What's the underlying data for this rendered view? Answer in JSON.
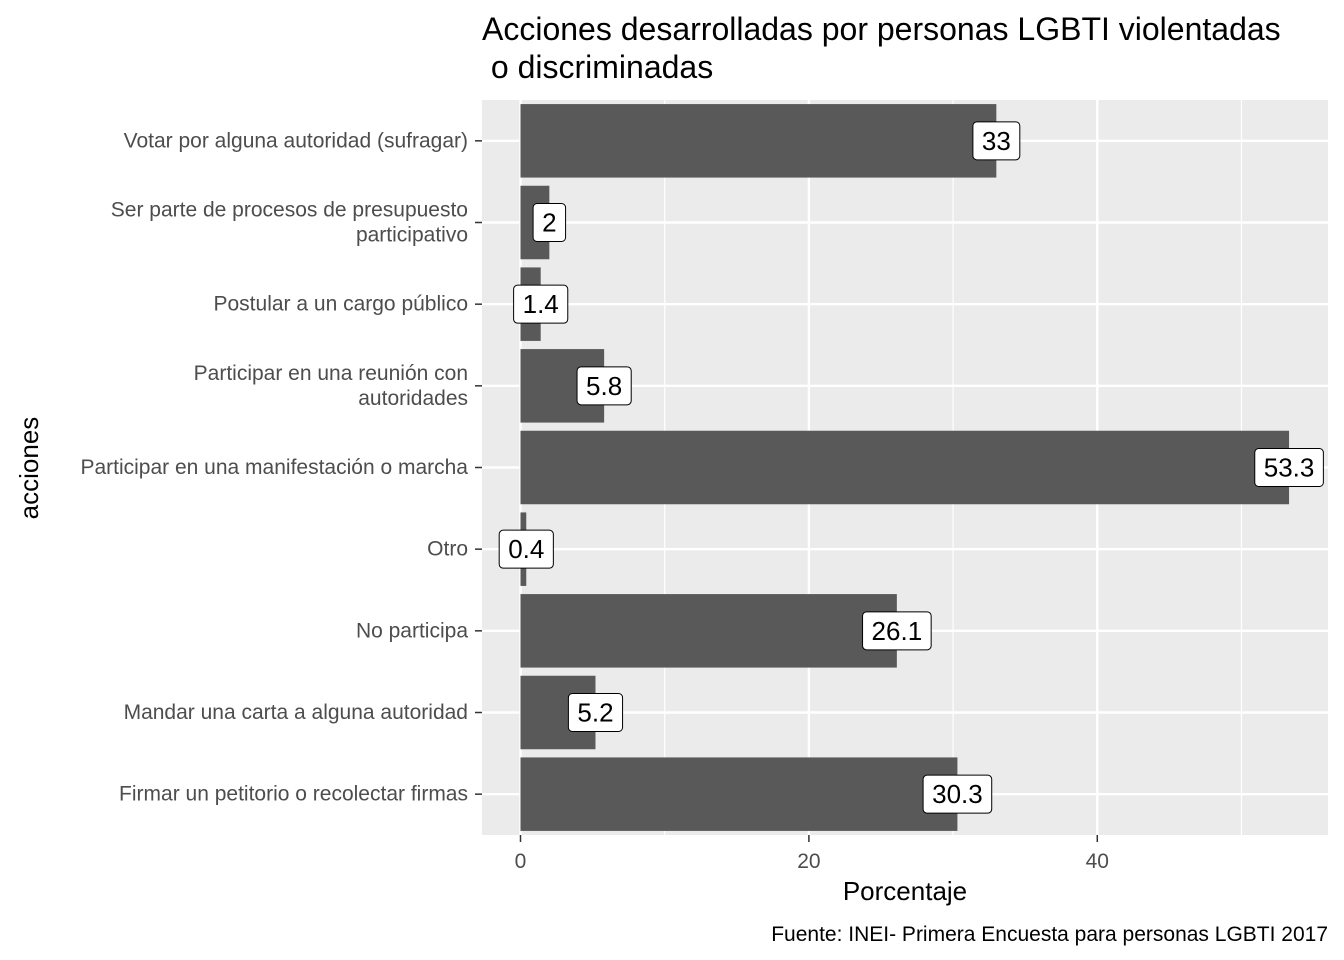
{
  "chart_data": {
    "type": "bar",
    "orientation": "horizontal",
    "title_lines": [
      "Acciones desarrolladas por personas LGBTI violentadas",
      " o discriminadas"
    ],
    "xlabel": "Porcentaje",
    "ylabel": "acciones",
    "caption": "Fuente: INEI- Primera Encuesta para personas LGBTI 2017",
    "categories": [
      [
        "Votar por alguna autoridad (sufragar)"
      ],
      [
        "Ser parte de procesos de presupuesto",
        "participativo"
      ],
      [
        "Postular a un cargo público"
      ],
      [
        "Participar en una reunión con",
        "autoridades"
      ],
      [
        "Participar en una manifestación o marcha"
      ],
      [
        "Otro"
      ],
      [
        "No participa"
      ],
      [
        "Mandar una carta a alguna autoridad"
      ],
      [
        "Firmar un petitorio o recolectar firmas"
      ]
    ],
    "values": [
      33,
      2,
      1.4,
      5.8,
      53.3,
      0.4,
      26.1,
      5.2,
      30.3
    ],
    "data_labels": [
      "33",
      "2",
      "1.4",
      "5.8",
      "53.3",
      "0.4",
      "26.1",
      "5.2",
      "30.3"
    ],
    "xticks": [
      0,
      20,
      40
    ],
    "xtick_labels": [
      "0",
      "20",
      "40"
    ],
    "xlim": [
      -2.67,
      56.0
    ],
    "grid": true,
    "colors": {
      "bar": "#595959",
      "panel": "#ebebeb",
      "grid": "#ffffff",
      "label_fill": "#ffffff",
      "label_border": "#000000"
    }
  }
}
